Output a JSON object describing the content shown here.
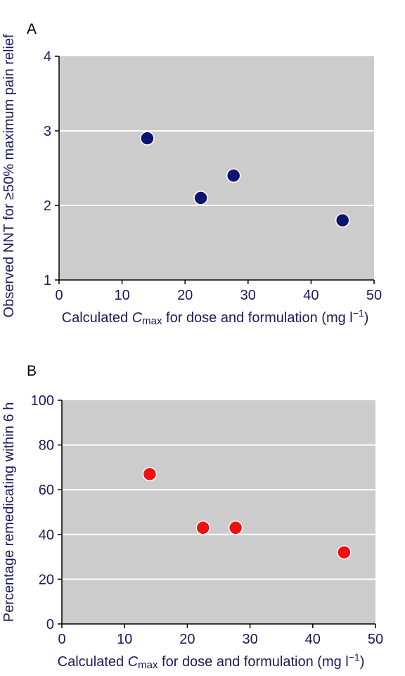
{
  "chart_data": [
    {
      "type": "scatter",
      "panel_label": "A",
      "xlabel_pre": "Calculated ",
      "xlabel_var": "C",
      "xlabel_sub": "max",
      "xlabel_post": " for dose and formulation (mg l",
      "xlabel_sup": "−1",
      "xlabel_close": ")",
      "ylabel": "Observed NNT for ≥50% maximum pain relief",
      "xlim": [
        0,
        50
      ],
      "ylim": [
        1,
        4
      ],
      "xticks": [
        "0",
        "10",
        "20",
        "30",
        "40",
        "50"
      ],
      "yticks": [
        "1",
        "2",
        "3",
        "4"
      ],
      "grid": "horizontal white lines",
      "background": "#cccccc",
      "marker_color": "#0c1470",
      "x": [
        14,
        22.5,
        27.7,
        45
      ],
      "y": [
        2.9,
        2.1,
        2.4,
        1.8
      ]
    },
    {
      "type": "scatter",
      "panel_label": "B",
      "xlabel_pre": "Calculated ",
      "xlabel_var": "C",
      "xlabel_sub": "max",
      "xlabel_post": " for dose and formulation (mg l",
      "xlabel_sup": "−1",
      "xlabel_close": ")",
      "ylabel": "Percentage remedicating within 6 h",
      "xlim": [
        0,
        50
      ],
      "ylim": [
        0,
        100
      ],
      "xticks": [
        "0",
        "10",
        "20",
        "30",
        "40",
        "50"
      ],
      "yticks": [
        "0",
        "20",
        "40",
        "60",
        "80",
        "100"
      ],
      "grid": "horizontal white lines",
      "background": "#cccccc",
      "marker_color": "#ee1111",
      "x": [
        14,
        22.5,
        27.7,
        45
      ],
      "y": [
        67,
        43,
        43,
        32
      ]
    }
  ]
}
